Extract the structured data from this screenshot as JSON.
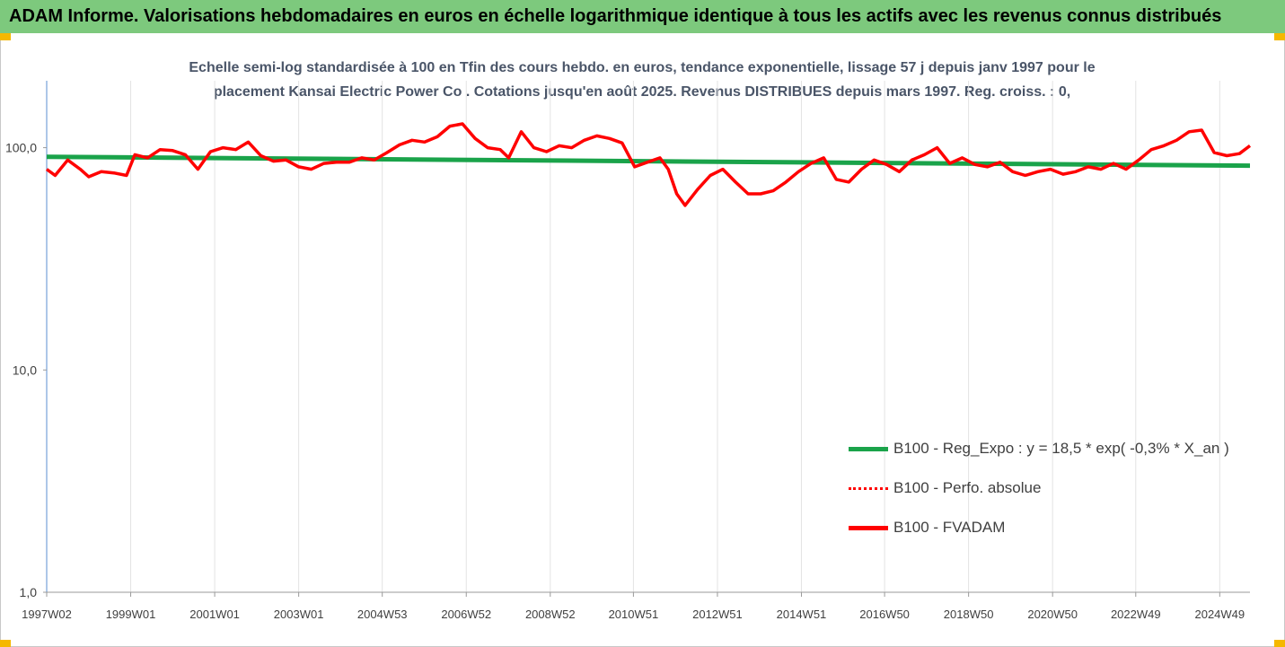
{
  "banner": {
    "title": "ADAM Informe. Valorisations hebdomadaires en euros en échelle logarithmique identique à tous les actifs avec les revenus connus distribués"
  },
  "colors": {
    "banner_bg": "#7dc97d",
    "trend": "#1aa34a",
    "series": "#ff0000"
  },
  "chart_data": {
    "type": "line",
    "title_line1": "Echelle semi-log standardisée à 100 en Tfin des cours hebdo. en euros, tendance exponentielle, lissage 57 j depuis janv 1997 pour le",
    "title_line2": "placement Kansai Electric Power Co . Cotations jusqu'en août 2025. Revenus DISTRIBUES depuis mars 1997. Reg. croiss. : 0,",
    "y_scale": "log",
    "ylim": [
      1,
      200
    ],
    "y_ticks": [
      1,
      10,
      100
    ],
    "y_tick_labels": [
      "1,0",
      "10,0",
      "100,0"
    ],
    "x_range": [
      1997.0,
      2025.65
    ],
    "x_ticks": [
      1997.0,
      1999.0,
      2001.0,
      2003.0,
      2004.99,
      2006.99,
      2008.99,
      2010.97,
      2012.97,
      2014.97,
      2016.95,
      2018.95,
      2020.95,
      2022.93,
      2024.93
    ],
    "x_tick_labels": [
      "1997W02",
      "1999W01",
      "2001W01",
      "2003W01",
      "2004W53",
      "2006W52",
      "2008W52",
      "2010W51",
      "2012W51",
      "2014W51",
      "2016W50",
      "2018W50",
      "2020W50",
      "2022W49",
      "2024W49"
    ],
    "grid": "vertical",
    "legend_position": "bottom-right",
    "series": [
      {
        "name": "B100 - Reg_Expo : y = 18,5 * exp( -0,3% *  X_an )",
        "style": "solid",
        "x": [
          1997.0,
          2025.65
        ],
        "y": [
          91,
          83
        ]
      },
      {
        "name": "B100 - Perfo. absolue",
        "style": "dotted",
        "x": [],
        "y": []
      },
      {
        "name": "B100 - FVADAM",
        "style": "solid",
        "x": [
          1997.0,
          1997.2,
          1997.5,
          1997.8,
          1998.0,
          1998.3,
          1998.6,
          1998.9,
          1999.1,
          1999.4,
          1999.7,
          2000.0,
          2000.3,
          2000.6,
          2000.9,
          2001.2,
          2001.5,
          2001.8,
          2002.1,
          2002.4,
          2002.7,
          2003.0,
          2003.3,
          2003.6,
          2003.9,
          2004.2,
          2004.5,
          2004.8,
          2005.1,
          2005.4,
          2005.7,
          2006.0,
          2006.3,
          2006.6,
          2006.9,
          2007.2,
          2007.5,
          2007.8,
          2008.0,
          2008.3,
          2008.6,
          2008.9,
          2009.2,
          2009.5,
          2009.8,
          2010.1,
          2010.4,
          2010.7,
          2011.0,
          2011.3,
          2011.6,
          2011.8,
          2012.0,
          2012.2,
          2012.5,
          2012.8,
          2013.1,
          2013.4,
          2013.7,
          2014.0,
          2014.3,
          2014.6,
          2014.9,
          2015.2,
          2015.5,
          2015.8,
          2016.1,
          2016.4,
          2016.7,
          2017.0,
          2017.3,
          2017.6,
          2017.9,
          2018.2,
          2018.5,
          2018.8,
          2019.1,
          2019.4,
          2019.7,
          2020.0,
          2020.3,
          2020.6,
          2020.9,
          2021.2,
          2021.5,
          2021.8,
          2022.1,
          2022.4,
          2022.7,
          2023.0,
          2023.3,
          2023.6,
          2023.9,
          2024.2,
          2024.5,
          2024.8,
          2025.1,
          2025.4,
          2025.65
        ],
        "y": [
          80,
          75,
          88,
          80,
          74,
          78,
          77,
          75,
          93,
          90,
          98,
          97,
          93,
          80,
          96,
          100,
          98,
          106,
          92,
          87,
          88,
          82,
          80,
          85,
          86,
          86,
          90,
          88,
          95,
          103,
          108,
          106,
          112,
          125,
          128,
          110,
          100,
          98,
          90,
          118,
          100,
          96,
          102,
          100,
          108,
          113,
          110,
          105,
          82,
          86,
          90,
          80,
          62,
          55,
          65,
          75,
          80,
          70,
          62,
          62,
          64,
          70,
          78,
          85,
          90,
          72,
          70,
          80,
          88,
          84,
          78,
          88,
          93,
          100,
          85,
          90,
          84,
          82,
          86,
          78,
          75,
          78,
          80,
          76,
          78,
          82,
          80,
          85,
          80,
          88,
          98,
          102,
          108,
          118,
          120,
          95,
          92,
          94,
          102
        ]
      }
    ]
  }
}
